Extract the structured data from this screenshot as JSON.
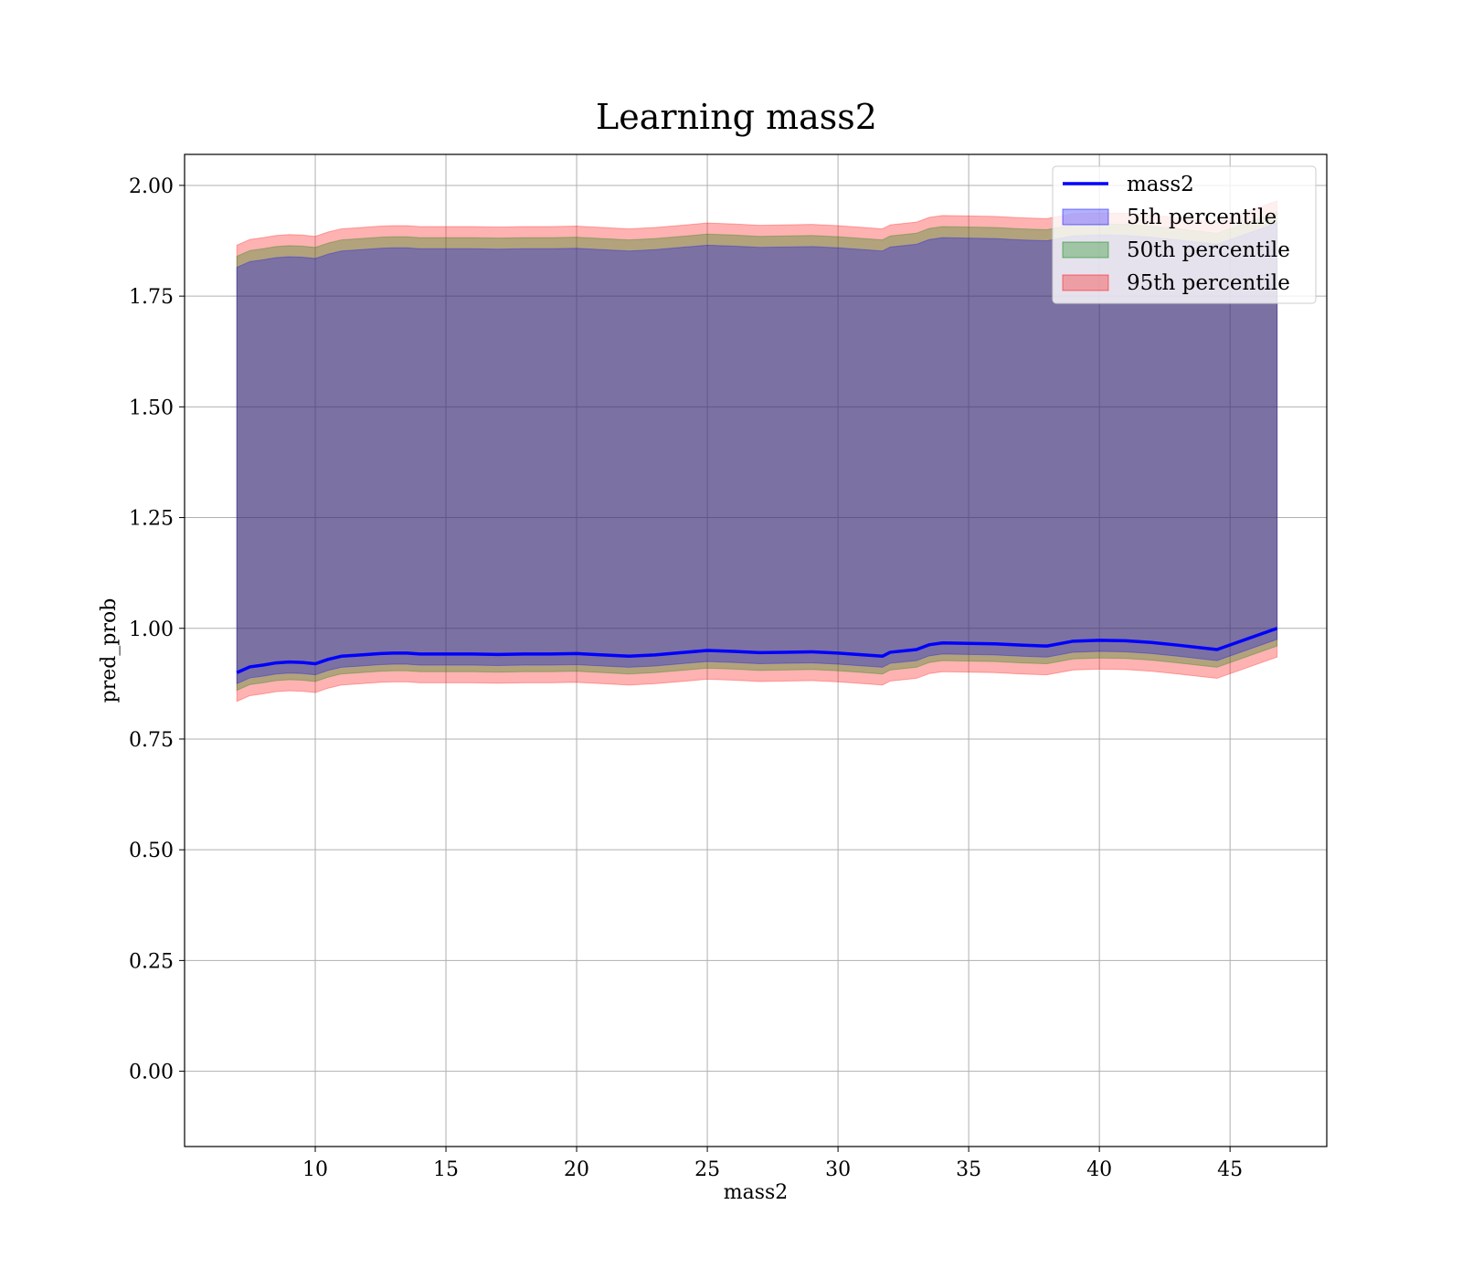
{
  "chart_data": {
    "type": "area",
    "title": "Learning mass2",
    "xlabel": "mass2",
    "ylabel": "pred_prob",
    "xlim": [
      5.0,
      48.7
    ],
    "ylim": [
      -0.17,
      2.07
    ],
    "xticks": [
      10,
      15,
      20,
      25,
      30,
      35,
      40,
      45
    ],
    "xtick_labels": [
      "10",
      "15",
      "20",
      "25",
      "30",
      "35",
      "40",
      "45"
    ],
    "yticks": [
      0.0,
      0.25,
      0.5,
      0.75,
      1.0,
      1.25,
      1.5,
      1.75,
      2.0
    ],
    "ytick_labels": [
      "0.00",
      "0.25",
      "0.50",
      "0.75",
      "1.00",
      "1.25",
      "1.50",
      "1.75",
      "2.00"
    ],
    "grid": true,
    "legend_position": "top-right",
    "x": [
      7.0,
      7.5,
      8.0,
      8.5,
      9.0,
      9.5,
      10.0,
      10.5,
      11.0,
      11.5,
      12.0,
      12.5,
      13.0,
      13.5,
      14.0,
      15.0,
      16.0,
      17.0,
      18.0,
      19.0,
      20.0,
      21.0,
      22.0,
      23.0,
      24.0,
      25.0,
      26.0,
      27.0,
      28.0,
      29.0,
      30.0,
      31.0,
      31.7,
      32.0,
      33.0,
      33.5,
      34.0,
      35.0,
      36.0,
      37.0,
      38.0,
      39.0,
      40.0,
      41.0,
      42.0,
      43.0,
      44.5,
      46.8
    ],
    "series": [
      {
        "name": "mass2",
        "kind": "line",
        "color": "#0000ff",
        "values": [
          0.9,
          0.913,
          0.917,
          0.922,
          0.924,
          0.923,
          0.92,
          0.93,
          0.937,
          0.939,
          0.941,
          0.943,
          0.944,
          0.944,
          0.942,
          0.942,
          0.942,
          0.941,
          0.942,
          0.942,
          0.943,
          0.94,
          0.937,
          0.94,
          0.945,
          0.95,
          0.948,
          0.945,
          0.946,
          0.947,
          0.944,
          0.94,
          0.937,
          0.946,
          0.952,
          0.963,
          0.967,
          0.966,
          0.965,
          0.962,
          0.96,
          0.971,
          0.973,
          0.972,
          0.968,
          0.962,
          0.952,
          1.0
        ]
      },
      {
        "name": "5th percentile",
        "kind": "band",
        "color": "#0000ff",
        "opacity": 0.3,
        "lower_offset": -0.025,
        "upper_offset": 0.915
      },
      {
        "name": "50th percentile",
        "kind": "band",
        "color": "#008000",
        "opacity": 0.3,
        "lower_offset": -0.04,
        "upper_offset": 0.94
      },
      {
        "name": "95th percentile",
        "kind": "band",
        "color": "#ff0000",
        "opacity": 0.3,
        "lower_offset": -0.065,
        "upper_offset": 0.965
      }
    ]
  }
}
